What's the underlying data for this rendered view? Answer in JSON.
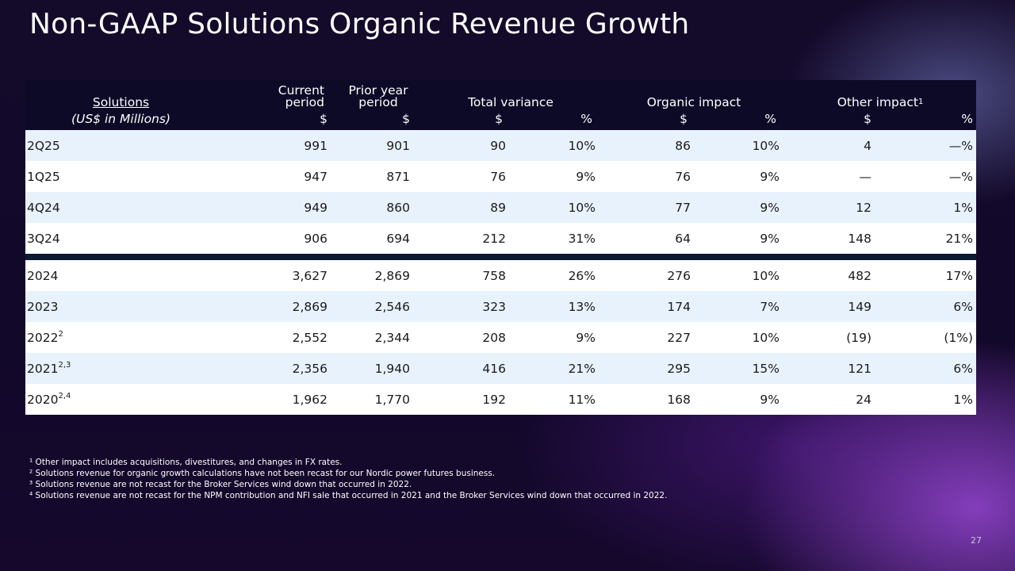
{
  "title": "Non-GAAP Solutions Organic Revenue Growth",
  "header": {
    "solutions": "Solutions",
    "units": "(US$ in Millions)",
    "current_line1": "Current",
    "current_line2": "period",
    "prior_line1": "Prior year",
    "prior_line2": "period",
    "total_variance": "Total variance",
    "organic_impact": "Organic impact",
    "other_impact": "Other impact",
    "other_impact_sup": "1",
    "dollar": "$",
    "pct": "%"
  },
  "quarterly_rows": [
    {
      "label": "2Q25",
      "sup": "",
      "current": "991",
      "prior": "901",
      "tv_d": "90",
      "tv_p": "10%",
      "oi_d": "86",
      "oi_p": "10%",
      "ot_d": "4",
      "ot_p": "—%"
    },
    {
      "label": "1Q25",
      "sup": "",
      "current": "947",
      "prior": "871",
      "tv_d": "76",
      "tv_p": "9%",
      "oi_d": "76",
      "oi_p": "9%",
      "ot_d": "—",
      "ot_p": "—%"
    },
    {
      "label": "4Q24",
      "sup": "",
      "current": "949",
      "prior": "860",
      "tv_d": "89",
      "tv_p": "10%",
      "oi_d": "77",
      "oi_p": "9%",
      "ot_d": "12",
      "ot_p": "1%"
    },
    {
      "label": "3Q24",
      "sup": "",
      "current": "906",
      "prior": "694",
      "tv_d": "212",
      "tv_p": "31%",
      "oi_d": "64",
      "oi_p": "9%",
      "ot_d": "148",
      "ot_p": "21%"
    }
  ],
  "annual_rows": [
    {
      "label": "2024",
      "sup": "",
      "current": "3,627",
      "prior": "2,869",
      "tv_d": "758",
      "tv_p": "26%",
      "oi_d": "276",
      "oi_p": "10%",
      "ot_d": "482",
      "ot_p": "17%"
    },
    {
      "label": "2023",
      "sup": "",
      "current": "2,869",
      "prior": "2,546",
      "tv_d": "323",
      "tv_p": "13%",
      "oi_d": "174",
      "oi_p": "7%",
      "ot_d": "149",
      "ot_p": "6%"
    },
    {
      "label": "2022",
      "sup": "2",
      "current": "2,552",
      "prior": "2,344",
      "tv_d": "208",
      "tv_p": "9%",
      "oi_d": "227",
      "oi_p": "10%",
      "ot_d": "(19)",
      "ot_p": "(1%)"
    },
    {
      "label": "2021",
      "sup": "2,3",
      "current": "2,356",
      "prior": "1,940",
      "tv_d": "416",
      "tv_p": "21%",
      "oi_d": "295",
      "oi_p": "15%",
      "ot_d": "121",
      "ot_p": "6%"
    },
    {
      "label": "2020",
      "sup": "2,4",
      "current": "1,962",
      "prior": "1,770",
      "tv_d": "192",
      "tv_p": "11%",
      "oi_d": "168",
      "oi_p": "9%",
      "ot_d": "24",
      "ot_p": "1%"
    }
  ],
  "footnotes": [
    "¹ Other impact includes acquisitions, divestitures, and changes in FX rates.",
    "² Solutions revenue for organic growth calculations have not been recast for our Nordic power futures business.",
    "³ Solutions revenue are not recast for the Broker Services wind down that occurred in 2022.",
    "⁴ Solutions revenue are not recast for the NPM contribution and NFI sale that occurred in 2021 and the Broker Services wind down that occurred in 2022."
  ],
  "page_number": "27"
}
